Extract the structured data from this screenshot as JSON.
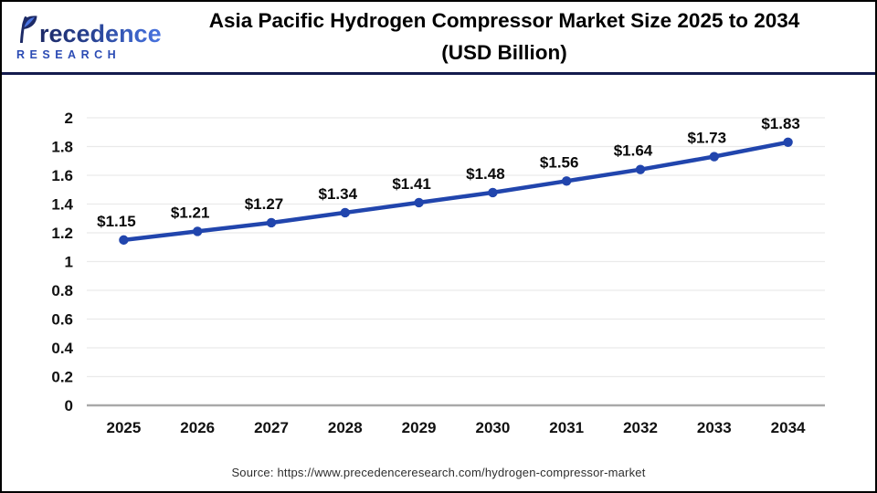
{
  "header": {
    "logo": {
      "name": "Precedence",
      "sub": "RESEARCH"
    },
    "title_line1": "Asia Pacific Hydrogen Compressor Market Size 2025 to 2034",
    "title_line2": "(USD Billion)"
  },
  "chart_data": {
    "type": "line",
    "title": "Asia Pacific Hydrogen Compressor Market Size 2025 to 2034 (USD Billion)",
    "categories": [
      "2025",
      "2026",
      "2027",
      "2028",
      "2029",
      "2030",
      "2031",
      "2032",
      "2033",
      "2034"
    ],
    "series": [
      {
        "name": "Asia Pacific Hydrogen Compressor Market Size (USD Billion)",
        "values": [
          1.15,
          1.21,
          1.27,
          1.34,
          1.41,
          1.48,
          1.56,
          1.64,
          1.73,
          1.83
        ]
      }
    ],
    "data_label_prefix": "$",
    "ylim": [
      0,
      2
    ],
    "ytick_step": 0.2,
    "xlabel": "",
    "ylabel": "",
    "grid": "horizontal",
    "legend": "none",
    "line_color": "#2145AD",
    "marker": "circle",
    "gridline_color": "#eaeaea",
    "axis_line_color": "#a9a9a9",
    "tick_label_color": "#111111",
    "data_label_color": "#0a0a0a"
  },
  "footer": {
    "source": "Source: https://www.precedenceresearch.com/hydrogen-compressor-market"
  }
}
